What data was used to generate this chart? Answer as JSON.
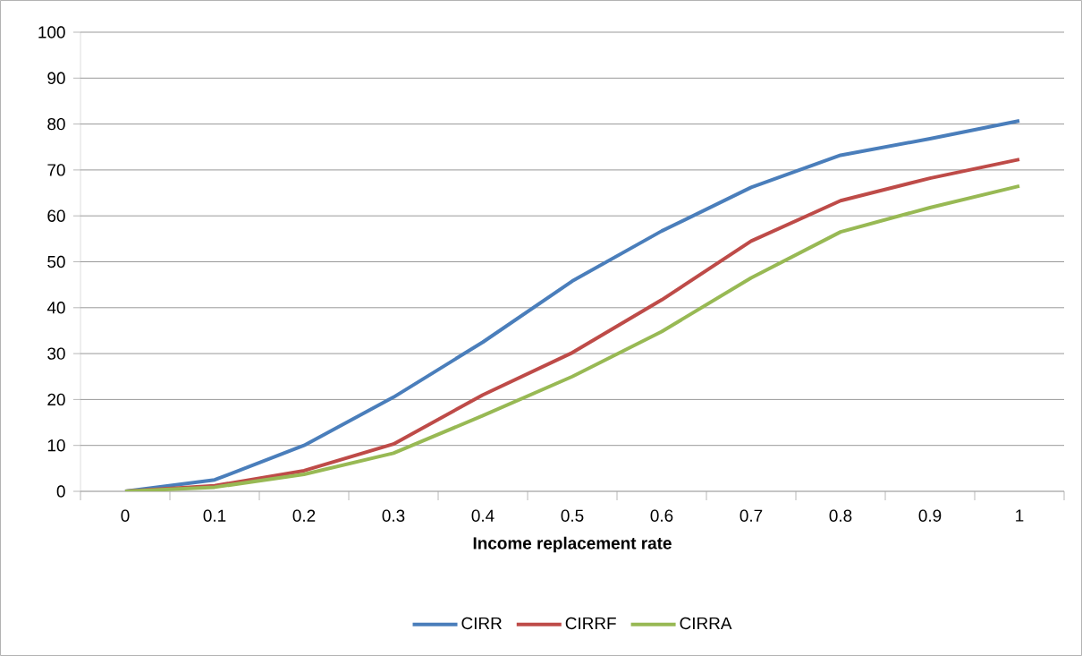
{
  "chart_data": {
    "type": "line",
    "xlabel": "Income replacement rate",
    "categories": [
      "0",
      "0.1",
      "0.2",
      "0.3",
      "0.4",
      "0.5",
      "0.6",
      "0.7",
      "0.8",
      "0.9",
      "1"
    ],
    "series": [
      {
        "name": "CIRR",
        "color": "#4a7ebb",
        "values": [
          0,
          2.5,
          10,
          20.5,
          32.5,
          45.8,
          56.7,
          66.2,
          73.2,
          76.8,
          80.7
        ]
      },
      {
        "name": "CIRRF",
        "color": "#be4b48",
        "values": [
          0,
          1.2,
          4.5,
          10.3,
          21,
          30.2,
          41.7,
          54.5,
          63.3,
          68.2,
          72.3
        ]
      },
      {
        "name": "CIRRA",
        "color": "#98b954",
        "values": [
          0,
          0.9,
          3.7,
          8.3,
          16.5,
          25,
          34.8,
          46.5,
          56.5,
          61.8,
          66.5
        ]
      }
    ],
    "ylim": [
      0,
      100
    ],
    "yticks": [
      0,
      10,
      20,
      30,
      40,
      50,
      60,
      70,
      80,
      90,
      100
    ],
    "grid": "y",
    "legend": "bottom"
  }
}
